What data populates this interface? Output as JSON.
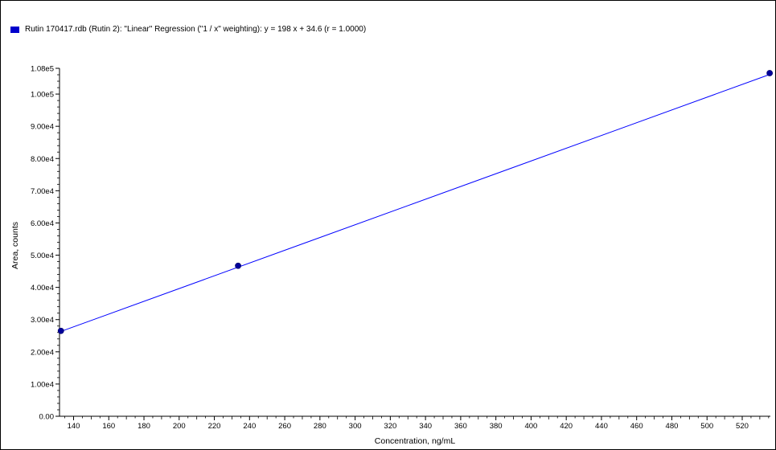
{
  "chart_data": {
    "type": "scatter",
    "legend": {
      "label": "Rutin 170417.rdb (Rutin 2): \"Linear\" Regression (\"1 / x\" weighting): y = 198 x + 34.6 (r = 1.0000)",
      "color": "#0000cc",
      "placement": "top-left"
    },
    "xlabel": "Concentration, ng/mL",
    "ylabel": "Area, counts",
    "xlim": [
      132,
      536
    ],
    "ylim": [
      0,
      108000
    ],
    "x_ticks": [
      140,
      160,
      180,
      200,
      220,
      240,
      260,
      280,
      300,
      320,
      340,
      360,
      380,
      400,
      420,
      440,
      460,
      480,
      500,
      520
    ],
    "x_tick_labels": [
      "140",
      "160",
      "180",
      "200",
      "220",
      "240",
      "260",
      "280",
      "300",
      "320",
      "340",
      "360",
      "380",
      "400",
      "420",
      "440",
      "460",
      "480",
      "500",
      "520"
    ],
    "y_ticks": [
      0,
      10000,
      20000,
      30000,
      40000,
      50000,
      60000,
      70000,
      80000,
      90000,
      100000,
      108000
    ],
    "y_tick_labels": [
      "0.00",
      "1.00e4",
      "2.00e4",
      "3.00e4",
      "4.00e4",
      "5.00e4",
      "6.00e4",
      "7.00e4",
      "8.00e4",
      "9.00e4",
      "1.00e5",
      "1.08e5"
    ],
    "series": [
      {
        "x": [
          132.8,
          233.5,
          535.6
        ],
        "y": [
          26500,
          46700,
          106500
        ],
        "color": "#000099"
      }
    ],
    "regression": {
      "slope": 198,
      "intercept": 34.6,
      "x_range": [
        132,
        536
      ],
      "color": "#0000ff"
    },
    "grid": false
  }
}
